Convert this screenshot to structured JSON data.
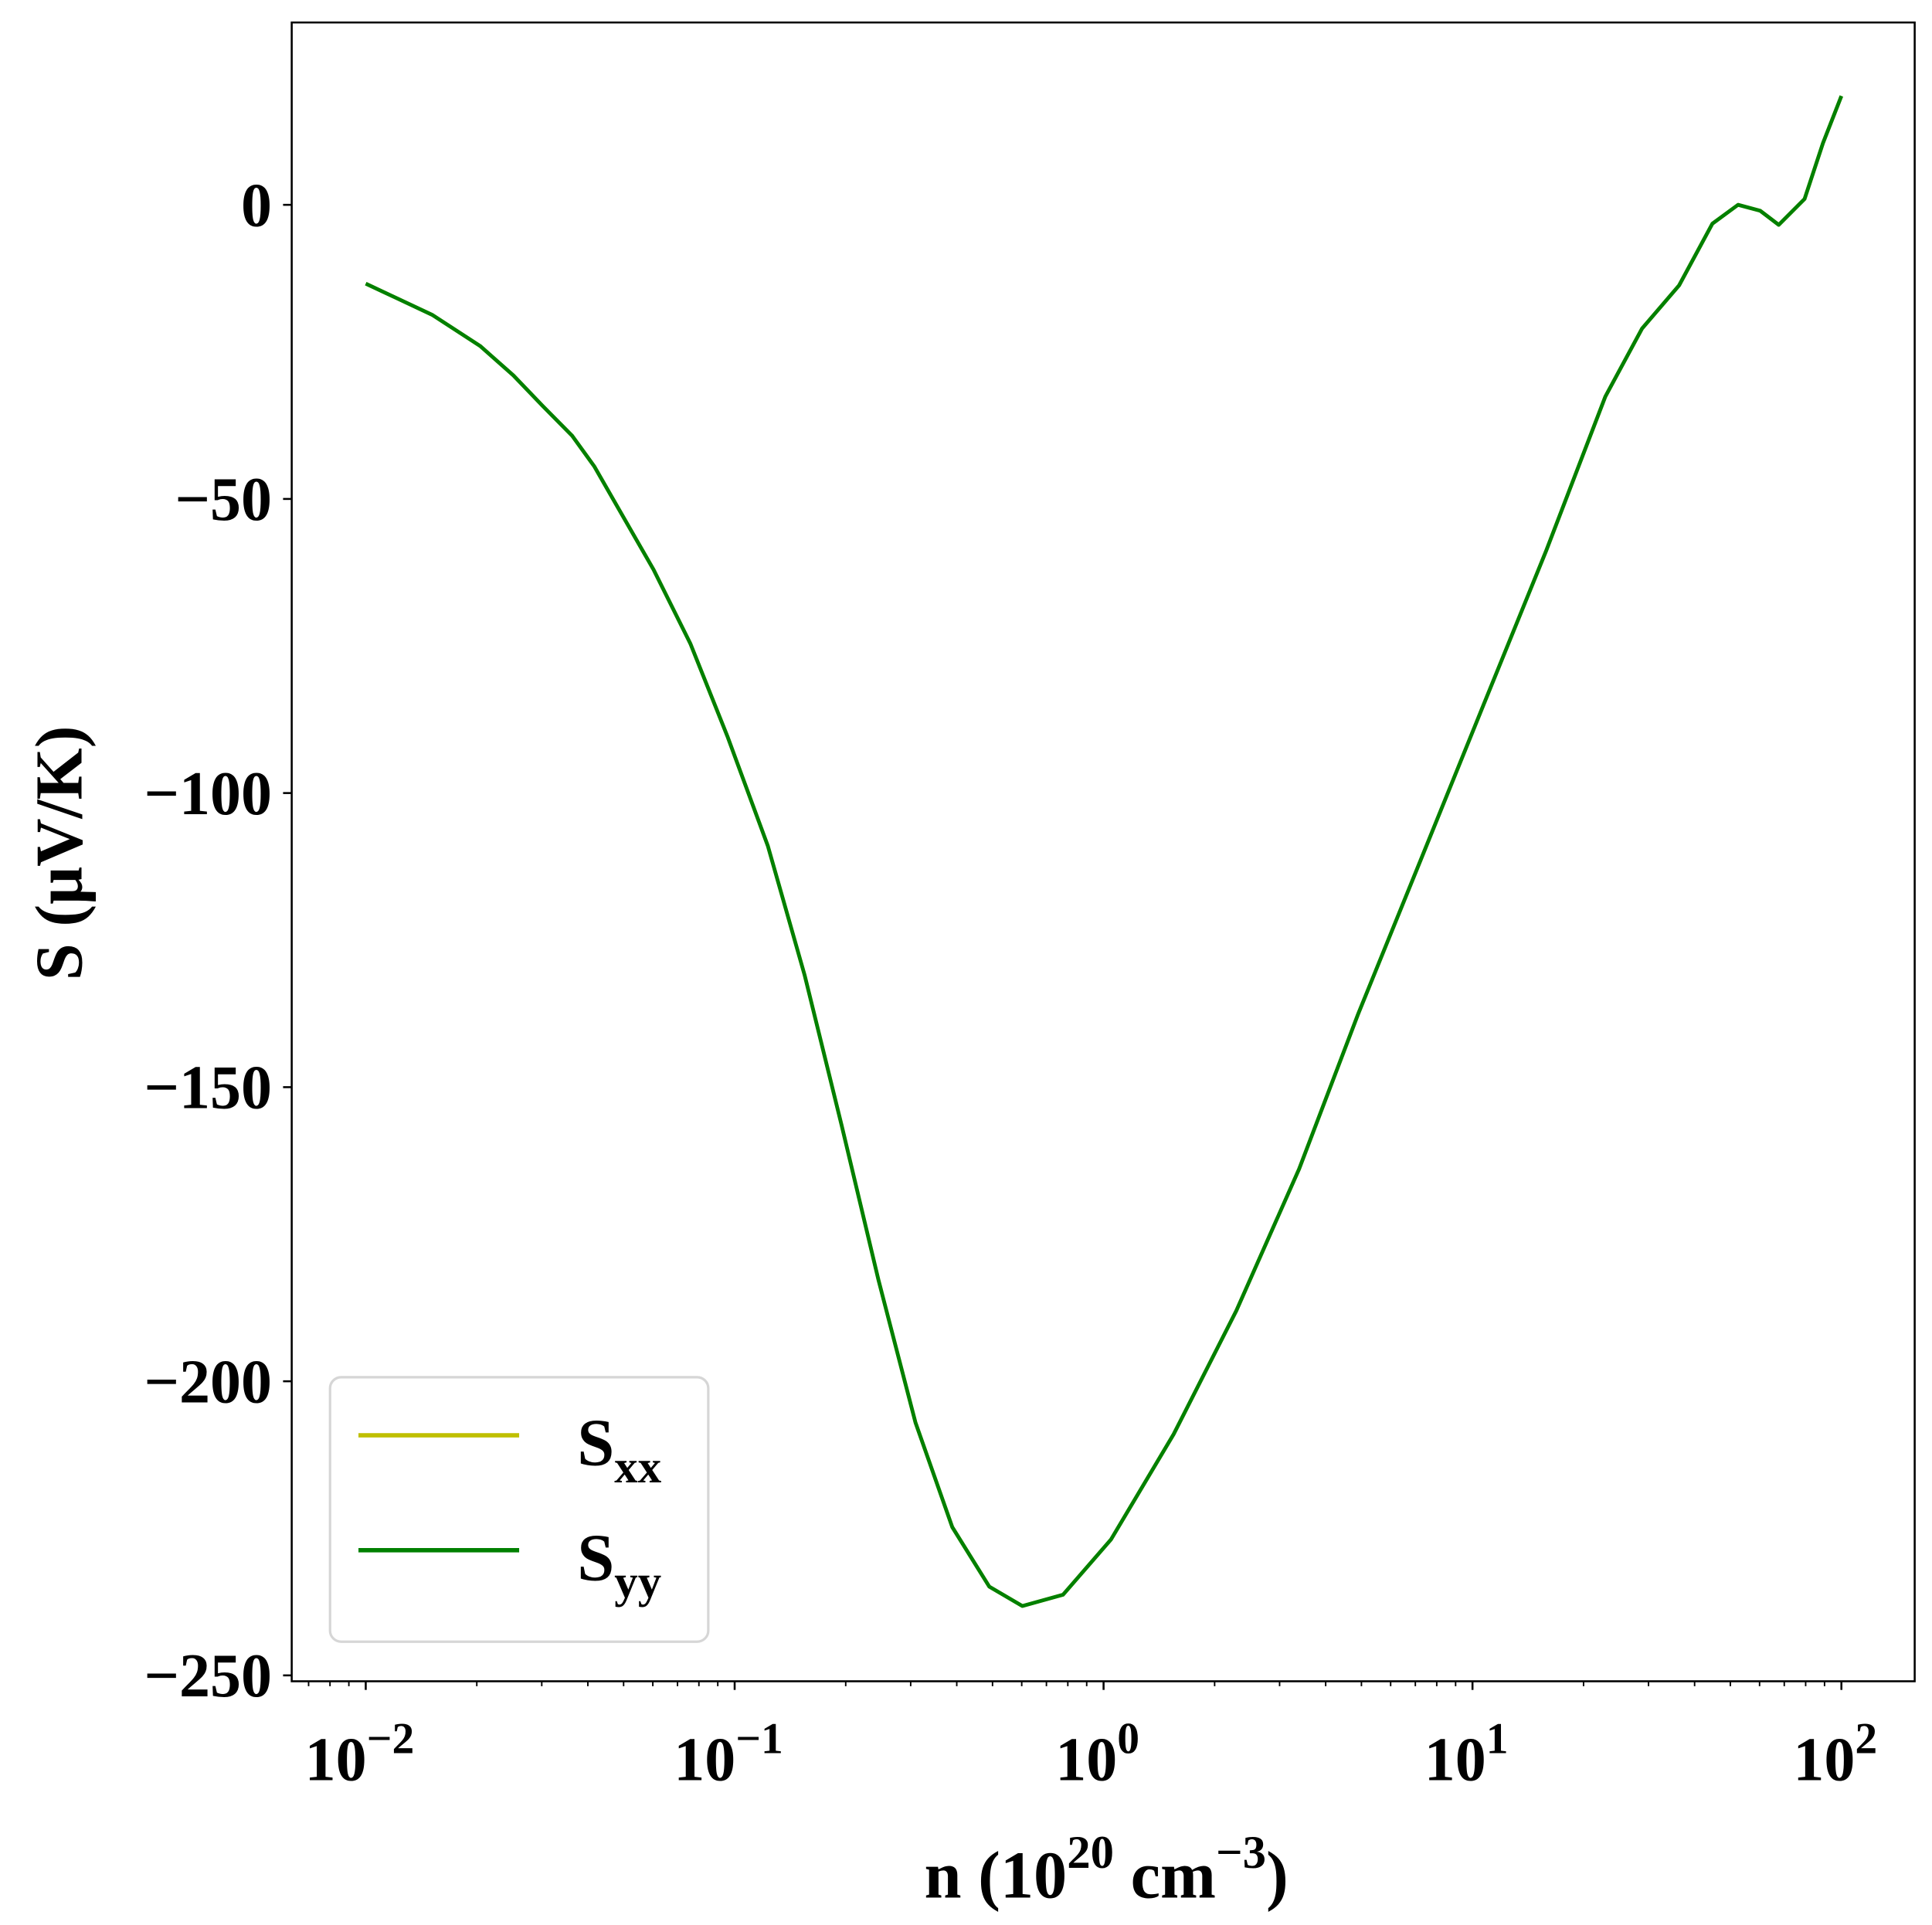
{
  "chart_data": {
    "type": "line",
    "title": "",
    "xlabel": "n (10^20 cm^-3)",
    "xlabel_parts": {
      "main": "n (10",
      "sup1": "20",
      "mid": " cm",
      "sup2": "−3",
      "end": ")"
    },
    "ylabel": "S (μV/K)",
    "xscale": "log",
    "xlim": [
      0.0063,
      158
    ],
    "ylim": [
      -251,
      31
    ],
    "x_ticks": [
      {
        "exp": -2,
        "base": "10",
        "sup": "−2"
      },
      {
        "exp": -1,
        "base": "10",
        "sup": "−1"
      },
      {
        "exp": 0,
        "base": "10",
        "sup": "0"
      },
      {
        "exp": 1,
        "base": "10",
        "sup": "1"
      },
      {
        "exp": 2,
        "base": "10",
        "sup": "2"
      }
    ],
    "y_ticks": [
      {
        "value": 0,
        "label": "0"
      },
      {
        "value": -50,
        "label": "−50"
      },
      {
        "value": -100,
        "label": "−100"
      },
      {
        "value": -150,
        "label": "−150"
      },
      {
        "value": -200,
        "label": "−200"
      },
      {
        "value": -250,
        "label": "−250"
      }
    ],
    "grid": false,
    "legend_position": "lower-left",
    "log10_x": [
      -2,
      -1.82,
      -1.69,
      -1.6,
      -1.52,
      -1.44,
      -1.38,
      -1.33,
      -1.22,
      -1.12,
      -1.02,
      -0.91,
      -0.81,
      -0.71,
      -0.61,
      -0.51,
      -0.41,
      -0.31,
      -0.22,
      -0.11,
      0.02,
      0.19,
      0.36,
      0.53,
      0.69,
      0.86,
      1.03,
      1.2,
      1.36,
      1.46,
      1.56,
      1.65,
      1.72,
      1.78,
      1.83,
      1.9,
      1.95,
      2.0
    ],
    "series": [
      {
        "name": "S",
        "sub": "xx",
        "color": "#bfbf00",
        "values": [
          -13.4,
          -18.7,
          -24,
          -29,
          -34.2,
          -39.3,
          -44.5,
          -50,
          -62,
          -74.6,
          -90.3,
          -109,
          -131,
          -156.5,
          -182.8,
          -207,
          -224.8,
          -234.9,
          -238.2,
          -236.3,
          -226.9,
          -209,
          -188,
          -163.9,
          -137.6,
          -111.3,
          -85,
          -58.8,
          -32.6,
          -21,
          -13.7,
          -3.2,
          0,
          -1,
          -3.4,
          1,
          10.5,
          18.5
        ]
      },
      {
        "name": "S",
        "sub": "yy",
        "color": "#008000",
        "values": [
          -13.4,
          -18.7,
          -24,
          -29,
          -34.2,
          -39.3,
          -44.5,
          -50,
          -62,
          -74.6,
          -90.3,
          -109,
          -131,
          -156.5,
          -182.8,
          -207,
          -224.8,
          -234.9,
          -238.2,
          -236.3,
          -226.9,
          -209,
          -188,
          -163.9,
          -137.6,
          -111.3,
          -85,
          -58.8,
          -32.6,
          -21,
          -13.7,
          -3.2,
          0,
          -1,
          -3.4,
          1,
          10.5,
          18.5
        ]
      }
    ]
  }
}
